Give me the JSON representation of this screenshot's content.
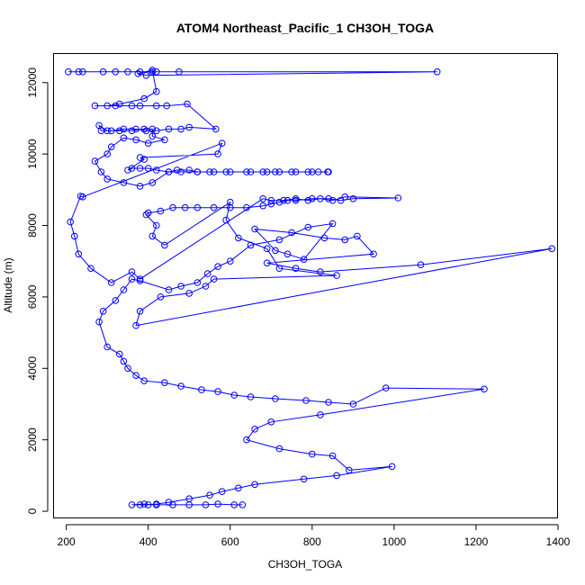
{
  "colors": {
    "series": "#0000ff",
    "axis": "#000000",
    "background": "#ffffff"
  },
  "chart_data": {
    "type": "line",
    "title": "ATOM4 Northeast_Pacific_1 CH3OH_TOGA",
    "xlabel": "CH3OH_TOGA",
    "ylabel": "Altitude (m)",
    "xlim": [
      170,
      1400
    ],
    "ylim": [
      -200,
      12800
    ],
    "xticks": [
      200,
      400,
      600,
      800,
      1000,
      1200,
      1400
    ],
    "yticks": [
      0,
      2000,
      4000,
      6000,
      8000,
      10000,
      12000
    ],
    "grid": false,
    "markers": "open-circle",
    "series": [
      {
        "points": [
          [
            205,
            12300
          ],
          [
            230,
            12300
          ],
          [
            240,
            12300
          ],
          [
            290,
            12300
          ],
          [
            320,
            12300
          ],
          [
            350,
            12300
          ],
          [
            380,
            12300
          ],
          [
            410,
            12300
          ],
          [
            420,
            12300
          ],
          [
            475,
            12300
          ],
          [
            1105,
            12300
          ],
          [
            395,
            12200
          ],
          [
            375,
            12250
          ],
          [
            410,
            12350
          ],
          [
            420,
            11750
          ],
          [
            390,
            11550
          ],
          [
            330,
            11400
          ],
          [
            300,
            11350
          ],
          [
            270,
            11350
          ],
          [
            320,
            11350
          ],
          [
            360,
            11350
          ],
          [
            380,
            11350
          ],
          [
            420,
            11350
          ],
          [
            445,
            11350
          ],
          [
            495,
            11400
          ],
          [
            565,
            10700
          ],
          [
            500,
            10750
          ],
          [
            480,
            10700
          ],
          [
            450,
            10700
          ],
          [
            420,
            10650
          ],
          [
            395,
            10650
          ],
          [
            370,
            10700
          ],
          [
            340,
            10700
          ],
          [
            310,
            10650
          ],
          [
            285,
            10650
          ],
          [
            280,
            10800
          ],
          [
            300,
            10650
          ],
          [
            330,
            10650
          ],
          [
            360,
            10650
          ],
          [
            390,
            10700
          ],
          [
            410,
            10700
          ],
          [
            410,
            10500
          ],
          [
            440,
            10400
          ],
          [
            400,
            10300
          ],
          [
            370,
            10400
          ],
          [
            340,
            10450
          ],
          [
            310,
            10200
          ],
          [
            300,
            10000
          ],
          [
            270,
            9800
          ],
          [
            285,
            9500
          ],
          [
            300,
            9300
          ],
          [
            340,
            9200
          ],
          [
            380,
            9100
          ],
          [
            410,
            9200
          ],
          [
            450,
            9500
          ],
          [
            480,
            9500
          ],
          [
            520,
            9500
          ],
          [
            560,
            9500
          ],
          [
            600,
            9500
          ],
          [
            650,
            9500
          ],
          [
            690,
            9500
          ],
          [
            720,
            9500
          ],
          [
            760,
            9500
          ],
          [
            800,
            9500
          ],
          [
            840,
            9500
          ],
          [
            838,
            9500
          ],
          [
            815,
            9500
          ],
          [
            790,
            9500
          ],
          [
            750,
            9500
          ],
          [
            710,
            9500
          ],
          [
            680,
            9500
          ],
          [
            640,
            9500
          ],
          [
            590,
            9500
          ],
          [
            550,
            9500
          ],
          [
            520,
            9500
          ],
          [
            500,
            9550
          ],
          [
            470,
            9550
          ],
          [
            450,
            9500
          ],
          [
            420,
            9550
          ],
          [
            400,
            9600
          ],
          [
            380,
            9600
          ],
          [
            360,
            9600
          ],
          [
            350,
            9550
          ],
          [
            390,
            9850
          ],
          [
            380,
            9900
          ],
          [
            570,
            10000
          ],
          [
            580,
            10300
          ],
          [
            240,
            8800
          ],
          [
            235,
            8820
          ],
          [
            210,
            8100
          ],
          [
            220,
            7700
          ],
          [
            230,
            7200
          ],
          [
            260,
            6800
          ],
          [
            310,
            6400
          ],
          [
            360,
            6700
          ],
          [
            380,
            6500
          ],
          [
            680,
            8750
          ],
          [
            700,
            8700
          ],
          [
            730,
            8700
          ],
          [
            760,
            8750
          ],
          [
            790,
            8700
          ],
          [
            820,
            8750
          ],
          [
            850,
            8700
          ],
          [
            880,
            8800
          ],
          [
            1010,
            8770
          ],
          [
            900,
            8750
          ],
          [
            870,
            8700
          ],
          [
            840,
            8750
          ],
          [
            800,
            8750
          ],
          [
            760,
            8700
          ],
          [
            740,
            8700
          ],
          [
            720,
            8650
          ],
          [
            700,
            8600
          ],
          [
            680,
            8550
          ],
          [
            640,
            8500
          ],
          [
            600,
            8500
          ],
          [
            560,
            8500
          ],
          [
            520,
            8500
          ],
          [
            490,
            8500
          ],
          [
            460,
            8500
          ],
          [
            430,
            8400
          ],
          [
            400,
            8350
          ],
          [
            395,
            8300
          ],
          [
            420,
            8000
          ],
          [
            410,
            7700
          ],
          [
            440,
            7450
          ],
          [
            600,
            8650
          ],
          [
            590,
            8150
          ],
          [
            620,
            7650
          ],
          [
            690,
            7350
          ],
          [
            720,
            6800
          ],
          [
            860,
            6600
          ],
          [
            560,
            6500
          ],
          [
            540,
            6300
          ],
          [
            500,
            6100
          ],
          [
            430,
            6000
          ],
          [
            380,
            5600
          ],
          [
            370,
            5200
          ],
          [
            1385,
            7350
          ],
          [
            1065,
            6900
          ],
          [
            820,
            6700
          ],
          [
            760,
            6800
          ],
          [
            690,
            6950
          ],
          [
            950,
            7200
          ],
          [
            910,
            7700
          ],
          [
            880,
            7600
          ],
          [
            830,
            7650
          ],
          [
            750,
            7800
          ],
          [
            660,
            7900
          ],
          [
            710,
            7300
          ],
          [
            740,
            7200
          ],
          [
            780,
            7050
          ],
          [
            850,
            8050
          ],
          [
            790,
            7950
          ],
          [
            720,
            7600
          ],
          [
            650,
            7450
          ],
          [
            600,
            7000
          ],
          [
            570,
            6850
          ],
          [
            545,
            6650
          ],
          [
            520,
            6400
          ],
          [
            480,
            6300
          ],
          [
            450,
            6200
          ],
          [
            380,
            6450
          ],
          [
            360,
            6500
          ],
          [
            340,
            6200
          ],
          [
            320,
            5900
          ],
          [
            290,
            5600
          ],
          [
            280,
            5300
          ],
          [
            300,
            4600
          ],
          [
            330,
            4400
          ],
          [
            340,
            4200
          ],
          [
            350,
            4000
          ],
          [
            370,
            3800
          ],
          [
            390,
            3650
          ],
          [
            440,
            3600
          ],
          [
            480,
            3500
          ],
          [
            530,
            3400
          ],
          [
            570,
            3350
          ],
          [
            610,
            3250
          ],
          [
            650,
            3200
          ],
          [
            710,
            3150
          ],
          [
            785,
            3100
          ],
          [
            840,
            3050
          ],
          [
            900,
            3000
          ],
          [
            980,
            3450
          ],
          [
            1220,
            3420
          ],
          [
            820,
            2700
          ],
          [
            700,
            2500
          ],
          [
            660,
            2300
          ],
          [
            640,
            2000
          ],
          [
            720,
            1750
          ],
          [
            800,
            1600
          ],
          [
            850,
            1550
          ],
          [
            890,
            1150
          ],
          [
            995,
            1250
          ],
          [
            860,
            1000
          ],
          [
            780,
            900
          ],
          [
            660,
            750
          ],
          [
            620,
            650
          ],
          [
            580,
            550
          ],
          [
            550,
            450
          ],
          [
            500,
            350
          ],
          [
            450,
            250
          ],
          [
            420,
            200
          ],
          [
            400,
            180
          ],
          [
            380,
            180
          ],
          [
            360,
            180
          ],
          [
            390,
            200
          ],
          [
            420,
            180
          ],
          [
            460,
            180
          ],
          [
            500,
            180
          ],
          [
            540,
            180
          ],
          [
            570,
            200
          ],
          [
            610,
            180
          ],
          [
            630,
            180
          ]
        ]
      }
    ]
  }
}
